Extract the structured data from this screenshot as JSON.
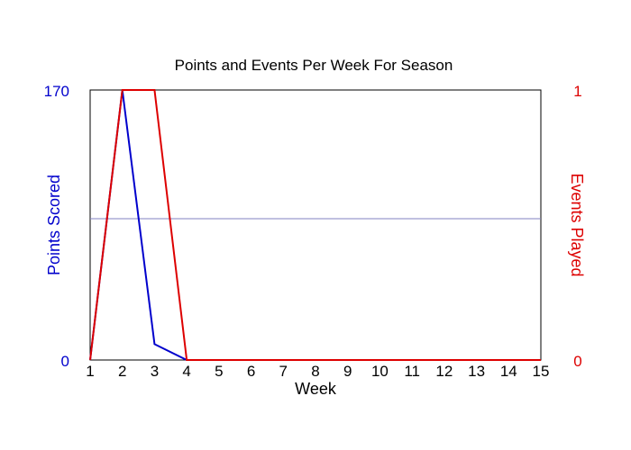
{
  "chart_data": {
    "type": "line",
    "title": "Points and Events Per Week For Season",
    "xlabel": "Week",
    "y_left_label": "Points Scored",
    "y_right_label": "Events Played",
    "x": [
      1,
      2,
      3,
      4,
      5,
      6,
      7,
      8,
      9,
      10,
      11,
      12,
      13,
      14,
      15
    ],
    "x_tick_labels": [
      "1",
      "2",
      "3",
      "4",
      "5",
      "6",
      "7",
      "8",
      "9",
      "10",
      "11",
      "12",
      "13",
      "14",
      "15"
    ],
    "y_left_range": [
      0,
      170
    ],
    "y_left_tick_labels": [
      "0",
      "170"
    ],
    "y_right_range": [
      0,
      1
    ],
    "y_right_tick_labels": [
      "0",
      "1"
    ],
    "reference_line": {
      "axis": "left",
      "value": 89,
      "color": "#8080c0"
    },
    "series": [
      {
        "axis": "left",
        "color": "#0000cc",
        "values": [
          0,
          170,
          10,
          0,
          0,
          0,
          0,
          0,
          0,
          0,
          0,
          0,
          0,
          0,
          0
        ]
      },
      {
        "axis": "right",
        "color": "#dd0000",
        "values": [
          0,
          1,
          1,
          0,
          0,
          0,
          0,
          0,
          0,
          0,
          0,
          0,
          0,
          0,
          0
        ]
      }
    ],
    "grid": false,
    "left_axis_color": "#0000cc",
    "right_axis_color": "#dd0000"
  }
}
